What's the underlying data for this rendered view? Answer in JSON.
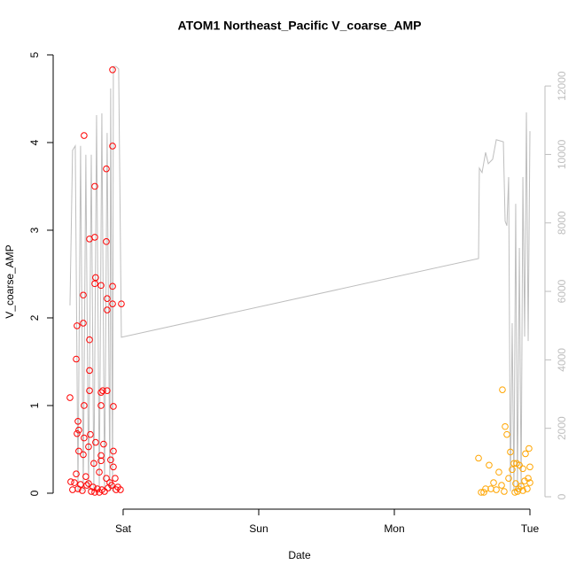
{
  "chart_data": {
    "type": "scatter",
    "title": "ATOM1 Northeast_Pacific V_coarse_AMP",
    "xlabel": "Date",
    "ylabel": "V_coarse_AMP",
    "xlim": [
      -0.516,
      3.111
    ],
    "xticks": [
      {
        "value": 0,
        "label": "Sat"
      },
      {
        "value": 1,
        "label": "Sun"
      },
      {
        "value": 2,
        "label": "Mon"
      },
      {
        "value": 3,
        "label": "Tue"
      }
    ],
    "ylim": [
      -0.182,
      5.02
    ],
    "yticks": [
      0,
      1,
      2,
      3,
      4,
      5
    ],
    "y2lim": [
      -362,
      12960
    ],
    "y2ticks": [
      0,
      2000,
      4000,
      6000,
      8000,
      10000,
      12000
    ],
    "series": [
      {
        "type": "scatter",
        "color": "#ff0000",
        "x": [
          -0.392,
          -0.346,
          -0.34,
          -0.288,
          -0.294,
          -0.294,
          -0.248,
          -0.209,
          -0.209,
          -0.203,
          -0.209,
          -0.163,
          -0.124,
          -0.124,
          -0.118,
          -0.118,
          -0.078,
          -0.078,
          -0.078,
          -0.078,
          -0.013,
          -0.248,
          -0.248,
          -0.248,
          -0.163,
          -0.15,
          -0.118,
          -0.072,
          -0.163,
          -0.288,
          -0.333,
          -0.34,
          -0.327,
          -0.242,
          -0.288,
          -0.203,
          -0.144,
          -0.255,
          -0.072,
          -0.327,
          -0.294,
          -0.163,
          -0.216,
          -0.092,
          -0.163,
          -0.072,
          -0.176,
          -0.346,
          -0.275,
          -0.124,
          -0.059,
          -0.386,
          -0.359,
          -0.314,
          -0.268,
          -0.222,
          -0.19,
          -0.157,
          -0.111,
          -0.085,
          -0.039,
          -0.02,
          -0.373,
          -0.333,
          -0.301,
          -0.235,
          -0.209,
          -0.176,
          -0.137,
          -0.052,
          -0.255,
          -0.098
        ],
        "values": [
          1.09,
          1.53,
          1.91,
          4.08,
          2.26,
          1.94,
          2.9,
          3.5,
          2.92,
          2.46,
          2.39,
          2.37,
          3.7,
          2.87,
          2.22,
          2.09,
          4.83,
          3.96,
          2.36,
          2.16,
          2.16,
          1.75,
          1.4,
          1.17,
          1.15,
          1.17,
          1.17,
          0.99,
          1.0,
          1.0,
          0.82,
          0.68,
          0.72,
          0.67,
          0.63,
          0.58,
          0.56,
          0.53,
          0.48,
          0.48,
          0.44,
          0.43,
          0.34,
          0.38,
          0.37,
          0.3,
          0.24,
          0.22,
          0.19,
          0.17,
          0.17,
          0.13,
          0.12,
          0.1,
          0.09,
          0.07,
          0.05,
          0.04,
          0.06,
          0.09,
          0.07,
          0.04,
          0.04,
          0.05,
          0.03,
          0.02,
          0.01,
          0.01,
          0.02,
          0.04,
          0.11,
          0.12
        ]
      },
      {
        "type": "scatter",
        "color": "#ffa500",
        "x": [
          2.621,
          2.699,
          2.797,
          2.817,
          2.83,
          2.771,
          2.856,
          2.882,
          2.902,
          2.922,
          2.948,
          2.967,
          2.993,
          3.0,
          2.732,
          2.673,
          2.641,
          2.66,
          2.752,
          2.791,
          2.843,
          2.869,
          2.895,
          2.915,
          2.935,
          2.961,
          2.98,
          3.0,
          2.889,
          2.908,
          2.81,
          2.712,
          2.948,
          2.987
        ],
        "values": [
          0.4,
          0.32,
          1.18,
          0.76,
          0.67,
          0.24,
          0.47,
          0.34,
          0.34,
          0.32,
          0.28,
          0.45,
          0.51,
          0.3,
          0.12,
          0.05,
          0.01,
          0.01,
          0.04,
          0.09,
          0.17,
          0.27,
          0.11,
          0.05,
          0.08,
          0.14,
          0.05,
          0.12,
          0.01,
          0.02,
          0.02,
          0.05,
          0.03,
          0.17
        ]
      },
      {
        "type": "line",
        "color": "#bebebe",
        "axis": "y2",
        "x": [
          -0.392,
          -0.373,
          -0.353,
          -0.333,
          -0.314,
          -0.294,
          -0.275,
          -0.255,
          -0.235,
          -0.216,
          -0.196,
          -0.176,
          -0.157,
          -0.137,
          -0.118,
          -0.098,
          -0.092,
          -0.078,
          -0.072,
          -0.052,
          -0.033,
          -0.013,
          2.621,
          2.627,
          2.647,
          2.673,
          2.693,
          2.725,
          2.752,
          2.804,
          2.817,
          2.83,
          2.843,
          2.856,
          2.869,
          2.882,
          2.895,
          2.908,
          2.922,
          2.935,
          2.948,
          2.961,
          2.974,
          2.987,
          3.0
        ],
        "values": [
          5590,
          10120,
          10250,
          160,
          10250,
          160,
          9990,
          160,
          9990,
          160,
          11150,
          160,
          11200,
          160,
          10630,
          160,
          11930,
          160,
          12570,
          12570,
          12500,
          4660,
          6960,
          9600,
          9470,
          10060,
          9730,
          9860,
          10430,
          10370,
          8050,
          7920,
          9340,
          160,
          5070,
          160,
          8560,
          160,
          7270,
          160,
          9340,
          4680,
          11230,
          4550,
          10680
        ]
      }
    ]
  }
}
